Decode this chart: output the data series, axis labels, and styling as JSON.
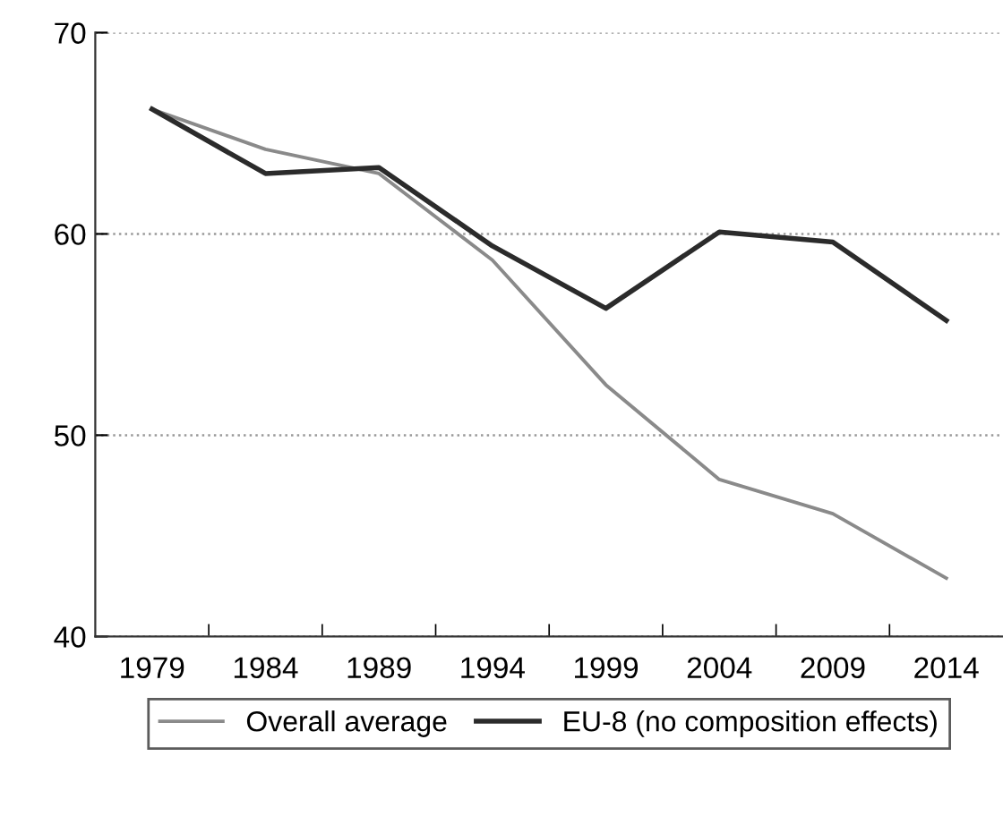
{
  "chart_data": {
    "type": "line",
    "categories": [
      "1979",
      "1984",
      "1989",
      "1994",
      "1999",
      "2004",
      "2009",
      "2014"
    ],
    "series": [
      {
        "name": "Overall average",
        "color": "#8a8a8a",
        "values": [
          66.2,
          64.2,
          63.0,
          58.7,
          52.5,
          47.8,
          46.1,
          42.9
        ]
      },
      {
        "name": "EU-8 (no composition effects)",
        "color": "#2b2b2b",
        "values": [
          66.2,
          63.0,
          63.3,
          59.4,
          56.3,
          60.1,
          59.6,
          55.7
        ]
      }
    ],
    "ylim": [
      40,
      70
    ],
    "yticks": [
      40,
      50,
      60,
      70
    ],
    "grid": "y",
    "legend": "bottom",
    "marker": "none",
    "line_style": "solid"
  }
}
